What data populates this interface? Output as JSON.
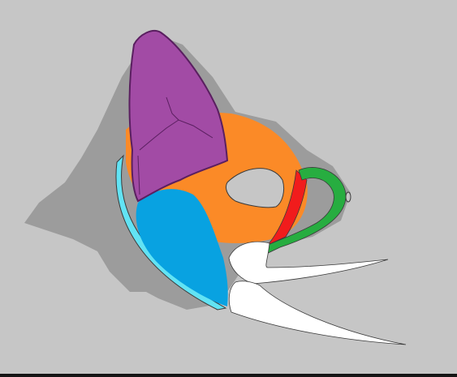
{
  "colors": {
    "background": "#c6c6c6",
    "shadow": "#9c9c9c",
    "outline": "#3a3a3a",
    "purple": "#a24ba5",
    "purple_outline": "#5a1f60",
    "orange": "#fb8a27",
    "cyan": "#62e3f4",
    "blue": "#08a2e1",
    "red": "#f11c1c",
    "green": "#27ad40",
    "white": "#ffffff",
    "bottom_bar": "#151515"
  }
}
